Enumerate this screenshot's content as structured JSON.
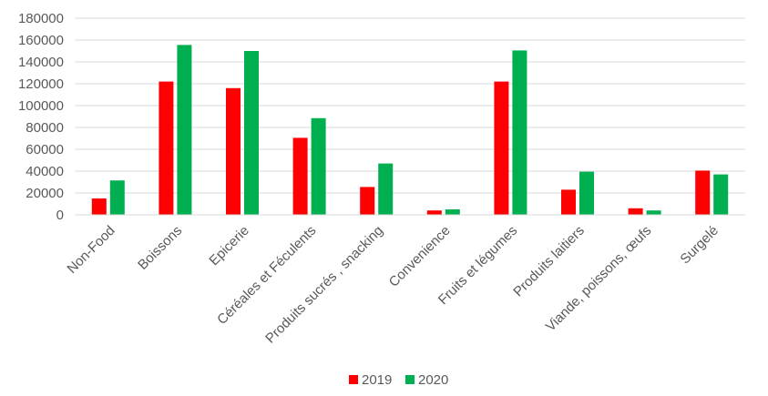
{
  "chart_data": {
    "type": "bar",
    "title": "",
    "xlabel": "",
    "ylabel": "",
    "categories": [
      "Non-Food",
      "Boissons",
      "Epicerie",
      "Céréales et Féculents",
      "Produits sucrés , snacking",
      "Convenience",
      "Fruits et légumes",
      "Produits laitiers",
      "Viande, poissons, œufs",
      "Surgelé"
    ],
    "series": [
      {
        "name": "2019",
        "color": "#ff0000",
        "values": [
          15000,
          122000,
          116000,
          70500,
          25500,
          4000,
          122000,
          23000,
          6000,
          40500
        ]
      },
      {
        "name": "2020",
        "color": "#00b050",
        "values": [
          31500,
          155500,
          150000,
          88500,
          47000,
          5000,
          150500,
          39500,
          4000,
          37000
        ]
      }
    ],
    "ylim": [
      0,
      180000
    ],
    "yticks": [
      "0",
      "20000",
      "40000",
      "60000",
      "80000",
      "100000",
      "120000",
      "140000",
      "160000",
      "180000"
    ],
    "grid": true,
    "legend_position": "bottom"
  }
}
